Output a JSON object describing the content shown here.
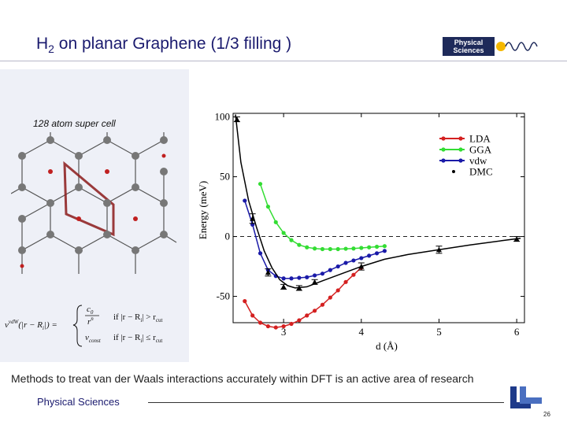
{
  "slide": {
    "title_main": "H",
    "title_sub": "2",
    "title_rest": " on planar Graphene (1/3 filling )",
    "logo_line1": "Physical",
    "logo_line2": "Sciences",
    "supercell_label": "128 atom super cell",
    "caption": "Methods to treat van der Waals interactions accurately within DFT is an active area of research",
    "footer": "Physical Sciences",
    "page_number": "26",
    "colors": {
      "title": "#1a1a6e",
      "panel": "#eef0f7",
      "lda": "#d42020",
      "gga": "#33dd33",
      "vdw": "#1a1aa8",
      "dmc": "#000000"
    }
  },
  "formula": {
    "lhs": "v",
    "lhs_sup": "vdW",
    "lhs_arg": "(|r − R",
    "lhs_arg_sub": "i",
    "lhs_arg_end": "|) =",
    "case1_num": "c",
    "case1_num_sub": "0",
    "case1_den": "r",
    "case1_den_sup": "n",
    "case1_cond": "if  |r − R",
    "case1_cond_sub": "i",
    "case1_cond_rel": "| > r",
    "case1_cond_end": "cut",
    "case2_val": "v",
    "case2_val_sub": "const",
    "case2_cond": "if  |r − R",
    "case2_cond_sub": "i",
    "case2_cond_rel": "| ≤ r",
    "case2_cond_end": "cut"
  },
  "chart_data": {
    "type": "line",
    "xlabel": "d (Å)",
    "ylabel": "Energy (meV)",
    "xlim": [
      2.35,
      6.1
    ],
    "ylim": [
      -72,
      103
    ],
    "xticks": [
      3,
      4,
      5,
      6
    ],
    "yticks": [
      100,
      50,
      0,
      -50
    ],
    "reference_line": 0,
    "legend_position": "top-right",
    "series": [
      {
        "name": "LDA",
        "color": "#d42020",
        "marker": "circle",
        "x": [
          2.5,
          2.6,
          2.7,
          2.8,
          2.9,
          3.0,
          3.1,
          3.2,
          3.3,
          3.4,
          3.5,
          3.6,
          3.7,
          3.8,
          3.9,
          4.0
        ],
        "y": [
          -54,
          -66,
          -72,
          -75,
          -76,
          -75,
          -73,
          -70,
          -66,
          -62,
          -57,
          -51,
          -45,
          -38,
          -32,
          -26
        ]
      },
      {
        "name": "GGA",
        "color": "#33dd33",
        "marker": "circle",
        "x": [
          2.7,
          2.8,
          2.9,
          3.0,
          3.1,
          3.2,
          3.3,
          3.4,
          3.5,
          3.6,
          3.7,
          3.8,
          3.9,
          4.0,
          4.1,
          4.2,
          4.3
        ],
        "y": [
          44,
          25,
          12,
          3,
          -3,
          -7,
          -9,
          -10,
          -10.5,
          -10.5,
          -10.5,
          -10.2,
          -10,
          -9.5,
          -9,
          -8.5,
          -8
        ]
      },
      {
        "name": "vdw",
        "color": "#1a1aa8",
        "marker": "circle",
        "x": [
          2.5,
          2.6,
          2.7,
          2.8,
          2.9,
          3.0,
          3.1,
          3.2,
          3.3,
          3.4,
          3.5,
          3.6,
          3.7,
          3.8,
          3.9,
          4.0,
          4.1,
          4.2,
          4.3
        ],
        "y": [
          30,
          10,
          -14,
          -28,
          -33,
          -35,
          -35,
          -34.5,
          -34,
          -32.5,
          -31,
          -28,
          -25,
          -22,
          -20,
          -18,
          -16,
          -14,
          -12
        ]
      },
      {
        "name": "DMC",
        "color": "#000000",
        "marker": "triangle",
        "x": [
          2.4,
          2.6,
          2.8,
          3.0,
          3.2,
          3.4,
          4.0,
          5.0,
          6.0
        ],
        "y": [
          98,
          15,
          -30,
          -42,
          -43,
          -38,
          -25,
          -11,
          -2
        ],
        "yerr": [
          2,
          4,
          3,
          2,
          2,
          2,
          3,
          3,
          2
        ],
        "fit_x": [
          2.38,
          2.45,
          2.55,
          2.65,
          2.75,
          2.85,
          2.95,
          3.05,
          3.15,
          3.3,
          3.5,
          3.75,
          4.0,
          4.3,
          4.6,
          5.0,
          5.4,
          5.8,
          6.05
        ],
        "fit_y": [
          102,
          62,
          30,
          8,
          -12,
          -26,
          -36,
          -41,
          -43,
          -42,
          -37,
          -31,
          -25,
          -19,
          -15,
          -11,
          -7,
          -3.5,
          -1.5
        ]
      }
    ]
  }
}
